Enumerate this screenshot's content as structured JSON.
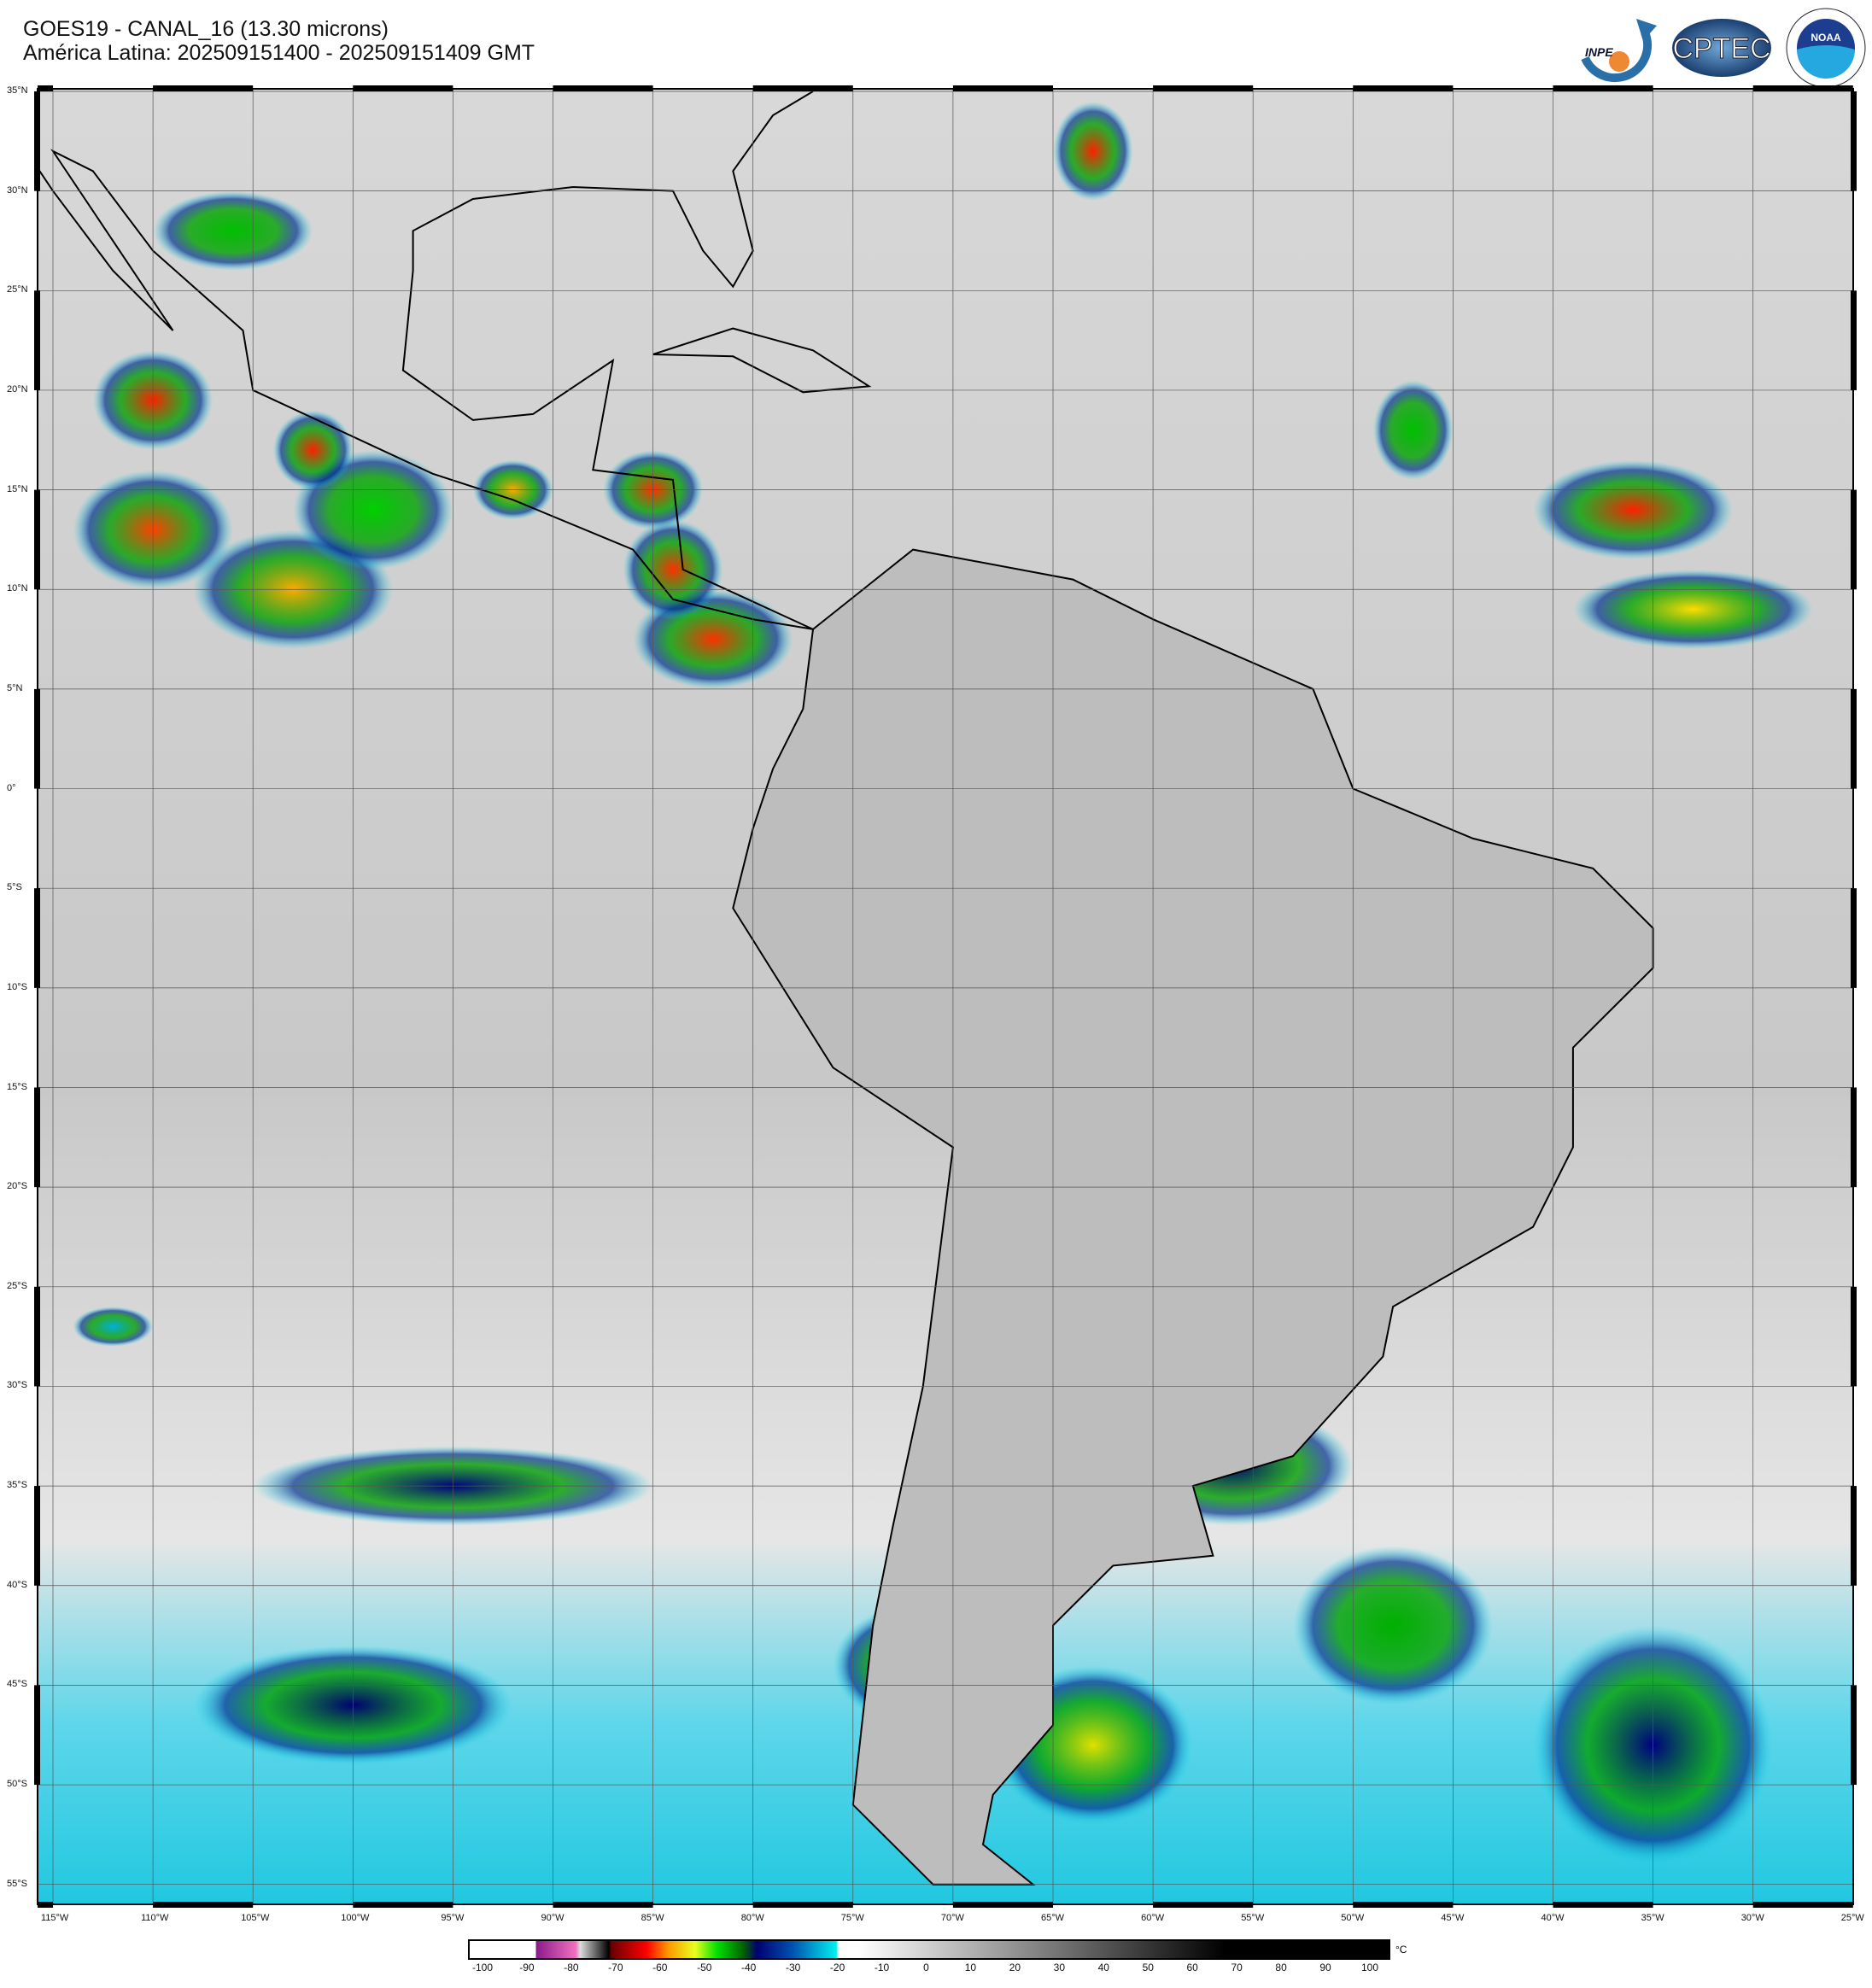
{
  "header": {
    "title": "GOES19 - CANAL_16 (13.30 microns)",
    "subtitle": "América Latina: 202509151400 - 202509151409 GMT"
  },
  "logos": [
    {
      "name": "INPE",
      "text": "INPE"
    },
    {
      "name": "CPTEC",
      "text": "CPTEC"
    },
    {
      "name": "NOAA",
      "text": "NOAA",
      "ring_text": "NATIONAL OCEANIC AND ATMOSPHERIC ADMINISTRATION · U.S. DEPARTMENT OF COMMERCE"
    }
  ],
  "map": {
    "projection": "cylindrical",
    "lon_range": [
      "115.8°W",
      "25°W"
    ],
    "lat_range": [
      "35°N",
      "56°S"
    ],
    "grid": true,
    "lat_labels": [
      "35°N",
      "30°N",
      "25°N",
      "20°N",
      "15°N",
      "10°N",
      "5°N",
      "0°",
      "5°S",
      "10°S",
      "15°S",
      "20°S",
      "25°S",
      "30°S",
      "35°S",
      "40°S",
      "45°S",
      "50°S",
      "55°S"
    ],
    "lon_labels": [
      "115°W",
      "110°W",
      "105°W",
      "100°W",
      "95°W",
      "90°W",
      "85°W",
      "80°W",
      "75°W",
      "70°W",
      "65°W",
      "60°W",
      "55°W",
      "50°W",
      "45°W",
      "40°W",
      "35°W",
      "30°W",
      "25°W"
    ]
  },
  "colorbar": {
    "unit": "°C",
    "ticks": [
      "-100",
      "-90",
      "-80",
      "-70",
      "-60",
      "-50",
      "-40",
      "-30",
      "-20",
      "-10",
      "0",
      "10",
      "20",
      "30",
      "40",
      "50",
      "60",
      "70",
      "80",
      "90",
      "100"
    ],
    "range": [
      -103,
      105
    ],
    "colors": {
      "purple": "#8a1a8a",
      "pink": "#f070c0",
      "red": "#ff0000",
      "orange": "#ff9900",
      "yellow": "#e8ff20",
      "green": "#00e000",
      "navy": "#000070",
      "cyan": "#00f0f0"
    }
  }
}
